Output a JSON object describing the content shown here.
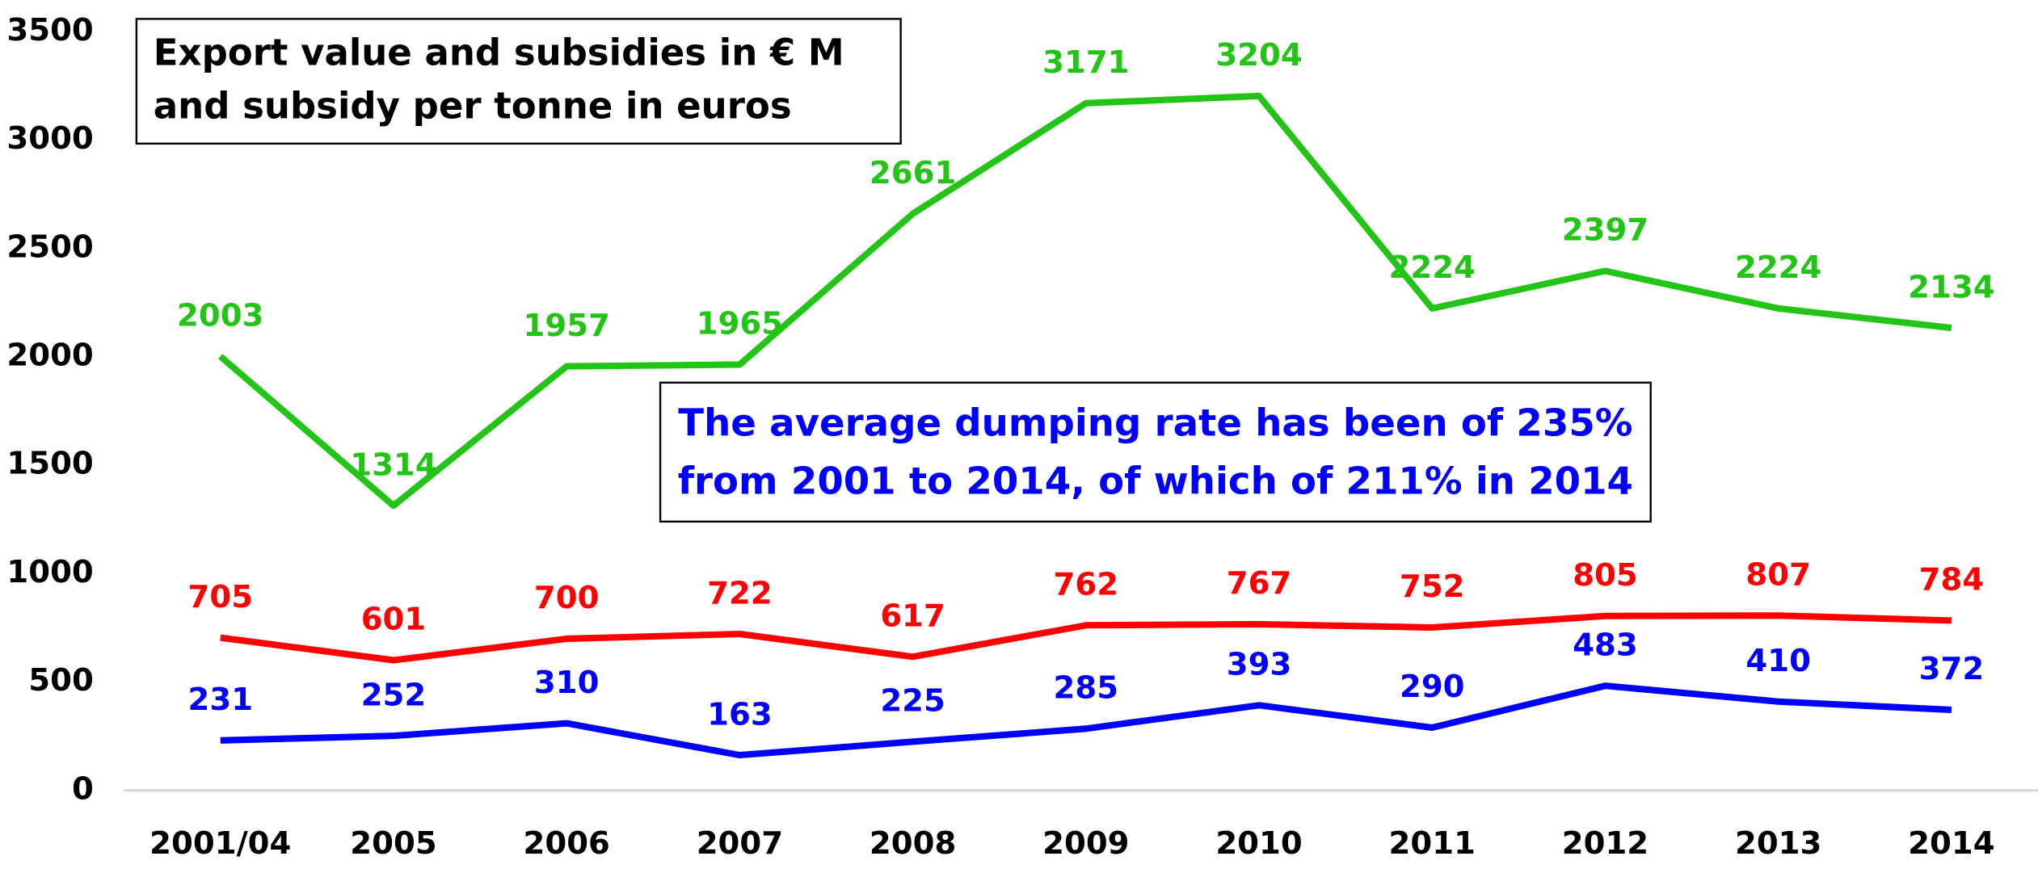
{
  "chart_data": {
    "type": "line",
    "categories": [
      "2001/04",
      "2005",
      "2006",
      "2007",
      "2008",
      "2009",
      "2010",
      "2011",
      "2012",
      "2013",
      "2014"
    ],
    "series": [
      {
        "color": "#22c416",
        "values": [
          2003,
          1314,
          1957,
          1965,
          2661,
          3171,
          3204,
          2224,
          2397,
          2224,
          2134
        ]
      },
      {
        "color": "#ff0000",
        "values": [
          705,
          601,
          700,
          722,
          617,
          762,
          767,
          752,
          805,
          807,
          784
        ]
      },
      {
        "color": "#0000ff",
        "values": [
          231,
          252,
          310,
          163,
          225,
          285,
          393,
          290,
          483,
          410,
          372
        ]
      }
    ],
    "ylim": [
      0,
      3500
    ],
    "yticks": [
      0,
      500,
      1000,
      1500,
      2000,
      2500,
      3000,
      3500
    ],
    "grid": false,
    "annotations": [
      {
        "lines": [
          "Export value and subsidies in € M",
          "and subsidy per tonne in euros"
        ],
        "color": "#000000"
      },
      {
        "lines": [
          "The average dumping rate has been of 235%",
          "from 2001 to 2014, of which of 211% in 2014"
        ],
        "color": "#0000ff"
      }
    ]
  }
}
